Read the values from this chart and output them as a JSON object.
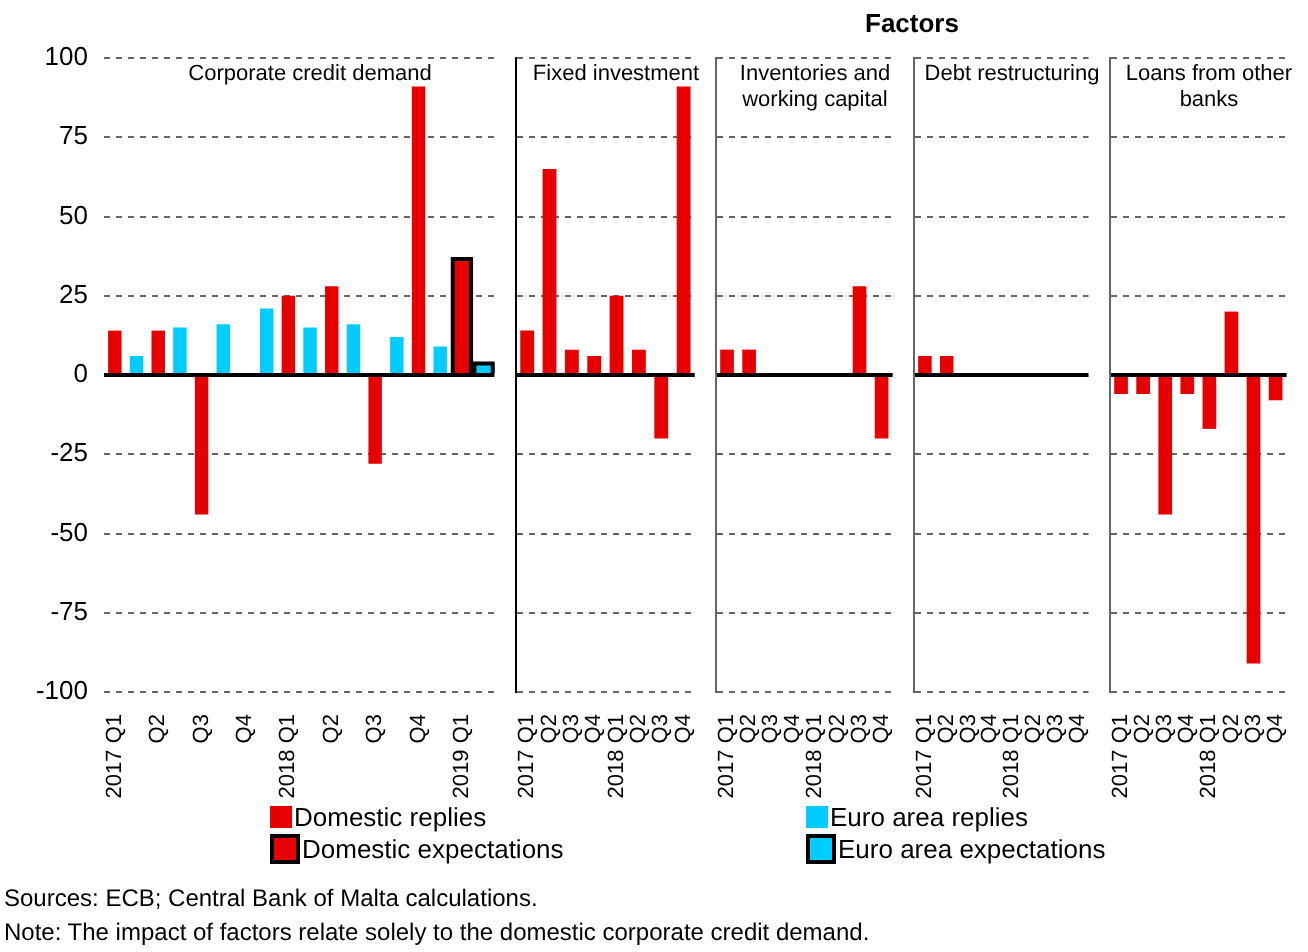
{
  "chart_data": [
    {
      "type": "bar",
      "title": "Corporate credit demand",
      "categories": [
        "2017 Q1",
        null,
        "Q2",
        null,
        "Q3",
        null,
        "Q4",
        null,
        "2018 Q1",
        null,
        "Q2",
        null,
        "Q3",
        null,
        "Q4",
        null,
        "2019 Q1",
        null
      ],
      "series": [
        {
          "name": "Domestic replies",
          "color": "#e60000",
          "values": [
            14,
            null,
            14,
            null,
            -44,
            null,
            null,
            null,
            25,
            null,
            28,
            null,
            -28,
            null,
            91,
            null,
            null,
            null
          ]
        },
        {
          "name": "Euro area replies",
          "color": "#00ccff",
          "values": [
            null,
            6,
            null,
            15,
            null,
            16,
            null,
            21,
            null,
            15,
            null,
            16,
            null,
            12,
            null,
            9,
            null,
            null
          ]
        },
        {
          "name": "Domestic expectations",
          "color": "#e60000",
          "values": [
            null,
            null,
            null,
            null,
            null,
            null,
            null,
            null,
            null,
            null,
            null,
            null,
            null,
            null,
            null,
            null,
            36,
            null
          ]
        },
        {
          "name": "Euro area expectations",
          "color": "#00ccff",
          "values": [
            null,
            null,
            null,
            null,
            null,
            null,
            null,
            null,
            null,
            null,
            null,
            null,
            null,
            null,
            null,
            null,
            null,
            3
          ]
        }
      ],
      "ylim": [
        -100,
        100
      ],
      "yticks": [
        -100,
        -75,
        -50,
        -25,
        0,
        25,
        50,
        75,
        100
      ],
      "grid": "y",
      "legend": "bottom",
      "annotations": [
        "Sources: ECB; Central Bank of Malta calculations.",
        "Note: The impact of factors relate solely to the domestic corporate credit demand."
      ]
    },
    {
      "type": "bar",
      "title": "Fixed investment",
      "categories": [
        "2017 Q1",
        "Q2",
        "Q3",
        "Q4",
        "2018 Q1",
        "Q2",
        "Q3",
        "Q4"
      ],
      "values": [
        14,
        65,
        8,
        6,
        25,
        8,
        -20,
        91
      ],
      "color": "#e60000",
      "ylim": [
        -100,
        100
      ],
      "yticks": [
        -100,
        -75,
        -50,
        -25,
        0,
        25,
        50,
        75,
        100
      ],
      "grid": "y",
      "tick_labels": "x",
      "annotations": [
        "Factors"
      ]
    },
    {
      "type": "bar",
      "title": "Inventories and working capital",
      "categories": [
        "2017 Q1",
        "Q2",
        "Q3",
        "Q4",
        "2018 Q1",
        "Q2",
        "Q3",
        "Q4"
      ],
      "values": [
        8,
        8,
        0,
        0,
        0,
        0,
        28,
        -20
      ],
      "color": "#e60000",
      "ylim": [
        -100,
        100
      ],
      "yticks": [
        -100,
        -75,
        -50,
        -25,
        0,
        25,
        50,
        75,
        100
      ],
      "grid": "y",
      "tick_labels": "x"
    },
    {
      "type": "bar",
      "title": "Debt restructuring",
      "categories": [
        "2017 Q1",
        "Q2",
        "Q3",
        "Q4",
        "2018 Q1",
        "Q2",
        "Q3",
        "Q4"
      ],
      "values": [
        6,
        6,
        0,
        0,
        0,
        0,
        0,
        0
      ],
      "color": "#e60000",
      "ylim": [
        -100,
        100
      ],
      "yticks": [
        -100,
        -75,
        -50,
        -25,
        0,
        25,
        50,
        75,
        100
      ],
      "grid": "y",
      "tick_labels": "x"
    },
    {
      "type": "bar",
      "title": "Loans from other banks",
      "categories": [
        "2017 Q1",
        "Q2",
        "Q3",
        "Q4",
        "2018 Q1",
        "Q2",
        "Q3",
        "Q4"
      ],
      "values": [
        -6,
        -6,
        -44,
        -6,
        -17,
        20,
        -91,
        -8
      ],
      "color": "#e60000",
      "ylim": [
        -100,
        100
      ],
      "yticks": [
        -100,
        -75,
        -50,
        -25,
        0,
        25,
        50,
        75,
        100
      ],
      "grid": "y",
      "tick_labels": "x"
    }
  ]
}
